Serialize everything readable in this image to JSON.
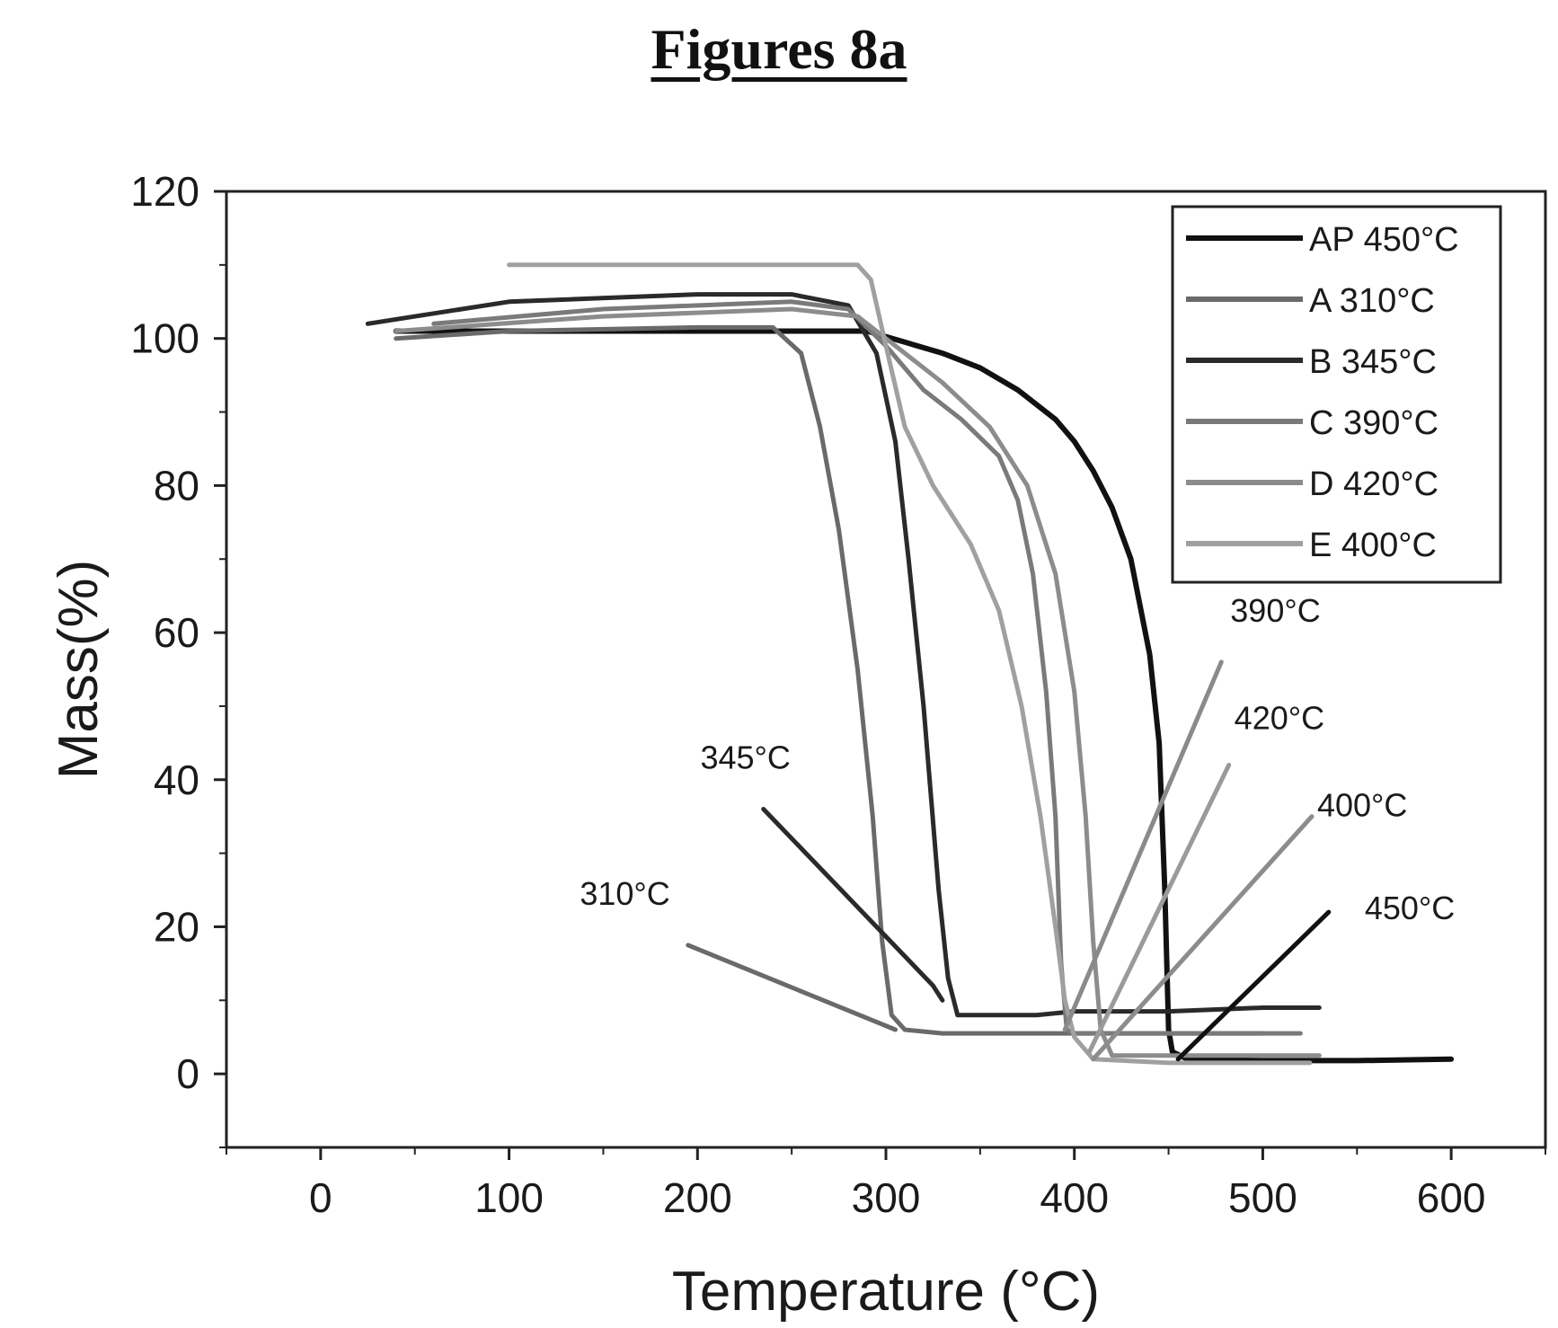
{
  "figure": {
    "title": "Figures 8a"
  },
  "chart_data": {
    "type": "line",
    "xlabel": "Temperature (°C)",
    "ylabel": "Mass(%)",
    "xlim": [
      -50,
      650
    ],
    "ylim": [
      -10,
      120
    ],
    "x_ticks": [
      0,
      100,
      200,
      300,
      400,
      500,
      600
    ],
    "y_ticks": [
      0,
      20,
      40,
      60,
      80,
      100,
      120
    ],
    "grid": false,
    "legend_position": "top-right",
    "series": [
      {
        "name": "AP 450°C",
        "color": "#111111",
        "points": [
          [
            40,
            101
          ],
          [
            100,
            101
          ],
          [
            200,
            101
          ],
          [
            290,
            101
          ],
          [
            310,
            99.5
          ],
          [
            330,
            98
          ],
          [
            350,
            96
          ],
          [
            370,
            93
          ],
          [
            390,
            89
          ],
          [
            400,
            86
          ],
          [
            410,
            82
          ],
          [
            420,
            77
          ],
          [
            430,
            70
          ],
          [
            440,
            57
          ],
          [
            445,
            45
          ],
          [
            448,
            25
          ],
          [
            450,
            6
          ],
          [
            452,
            3
          ],
          [
            460,
            2
          ],
          [
            500,
            1.8
          ],
          [
            550,
            1.8
          ],
          [
            600,
            2
          ]
        ]
      },
      {
        "name": "A 310°C",
        "color": "#6a6a6a",
        "points": [
          [
            40,
            100
          ],
          [
            100,
            101
          ],
          [
            200,
            101.5
          ],
          [
            240,
            101.5
          ],
          [
            255,
            98
          ],
          [
            265,
            88
          ],
          [
            275,
            74
          ],
          [
            285,
            55
          ],
          [
            293,
            35
          ],
          [
            298,
            18
          ],
          [
            303,
            8
          ],
          [
            310,
            6
          ],
          [
            330,
            5.5
          ],
          [
            400,
            5.5
          ],
          [
            450,
            5.5
          ],
          [
            500,
            5.5
          ]
        ]
      },
      {
        "name": "B 345°C",
        "color": "#2a2a2a",
        "points": [
          [
            25,
            102
          ],
          [
            100,
            105
          ],
          [
            200,
            106
          ],
          [
            250,
            106
          ],
          [
            280,
            104.5
          ],
          [
            295,
            98
          ],
          [
            305,
            86
          ],
          [
            312,
            70
          ],
          [
            320,
            50
          ],
          [
            328,
            25
          ],
          [
            333,
            13
          ],
          [
            338,
            8
          ],
          [
            360,
            8
          ],
          [
            380,
            8
          ],
          [
            400,
            8.5
          ],
          [
            420,
            8.5
          ],
          [
            450,
            8.5
          ],
          [
            500,
            9
          ],
          [
            530,
            9
          ]
        ]
      },
      {
        "name": "C 390°C",
        "color": "#7a7a7a",
        "points": [
          [
            60,
            102
          ],
          [
            150,
            104
          ],
          [
            250,
            105
          ],
          [
            280,
            104
          ],
          [
            300,
            99
          ],
          [
            320,
            93
          ],
          [
            340,
            89
          ],
          [
            360,
            84
          ],
          [
            370,
            78
          ],
          [
            378,
            68
          ],
          [
            385,
            52
          ],
          [
            390,
            35
          ],
          [
            393,
            15
          ],
          [
            396,
            6
          ],
          [
            400,
            5.5
          ],
          [
            450,
            5.5
          ],
          [
            500,
            5.5
          ],
          [
            520,
            5.5
          ]
        ]
      },
      {
        "name": "D 420°C",
        "color": "#8c8c8c",
        "points": [
          [
            40,
            101
          ],
          [
            150,
            103
          ],
          [
            250,
            104
          ],
          [
            285,
            103
          ],
          [
            305,
            99
          ],
          [
            330,
            94
          ],
          [
            355,
            88
          ],
          [
            375,
            80
          ],
          [
            390,
            68
          ],
          [
            400,
            52
          ],
          [
            406,
            35
          ],
          [
            410,
            18
          ],
          [
            414,
            6
          ],
          [
            420,
            2.5
          ],
          [
            450,
            2.5
          ],
          [
            500,
            2.5
          ],
          [
            530,
            2.5
          ]
        ]
      },
      {
        "name": "E 400°C",
        "color": "#a0a0a0",
        "points": [
          [
            100,
            110
          ],
          [
            200,
            110
          ],
          [
            285,
            110
          ],
          [
            292,
            108
          ],
          [
            300,
            99
          ],
          [
            310,
            88
          ],
          [
            325,
            80
          ],
          [
            345,
            72
          ],
          [
            360,
            63
          ],
          [
            372,
            50
          ],
          [
            382,
            35
          ],
          [
            390,
            20
          ],
          [
            395,
            10
          ],
          [
            400,
            5
          ],
          [
            410,
            2
          ],
          [
            450,
            1.5
          ],
          [
            500,
            1.5
          ],
          [
            525,
            1.5
          ]
        ]
      }
    ],
    "annotations": [
      {
        "label": "310°C",
        "line": [
          [
            195,
            17.5
          ],
          [
            305,
            6
          ]
        ],
        "color": "#6a6a6a"
      },
      {
        "label": "345°C",
        "line": [
          [
            235,
            36
          ],
          [
            325,
            12
          ],
          [
            330,
            10
          ]
        ],
        "color": "#2a2a2a"
      },
      {
        "label": "390°C",
        "line": [
          [
            478,
            56
          ],
          [
            395,
            6
          ]
        ],
        "color": "#8a8a8a"
      },
      {
        "label": "420°C",
        "line": [
          [
            482,
            42
          ],
          [
            408,
            3
          ]
        ],
        "color": "#9a9a9a"
      },
      {
        "label": "400°C",
        "line": [
          [
            526,
            35
          ],
          [
            410,
            2
          ]
        ],
        "color": "#8c8c8c"
      },
      {
        "label": "450°C",
        "line": [
          [
            535,
            22
          ],
          [
            455,
            2
          ]
        ],
        "color": "#111111"
      }
    ]
  }
}
